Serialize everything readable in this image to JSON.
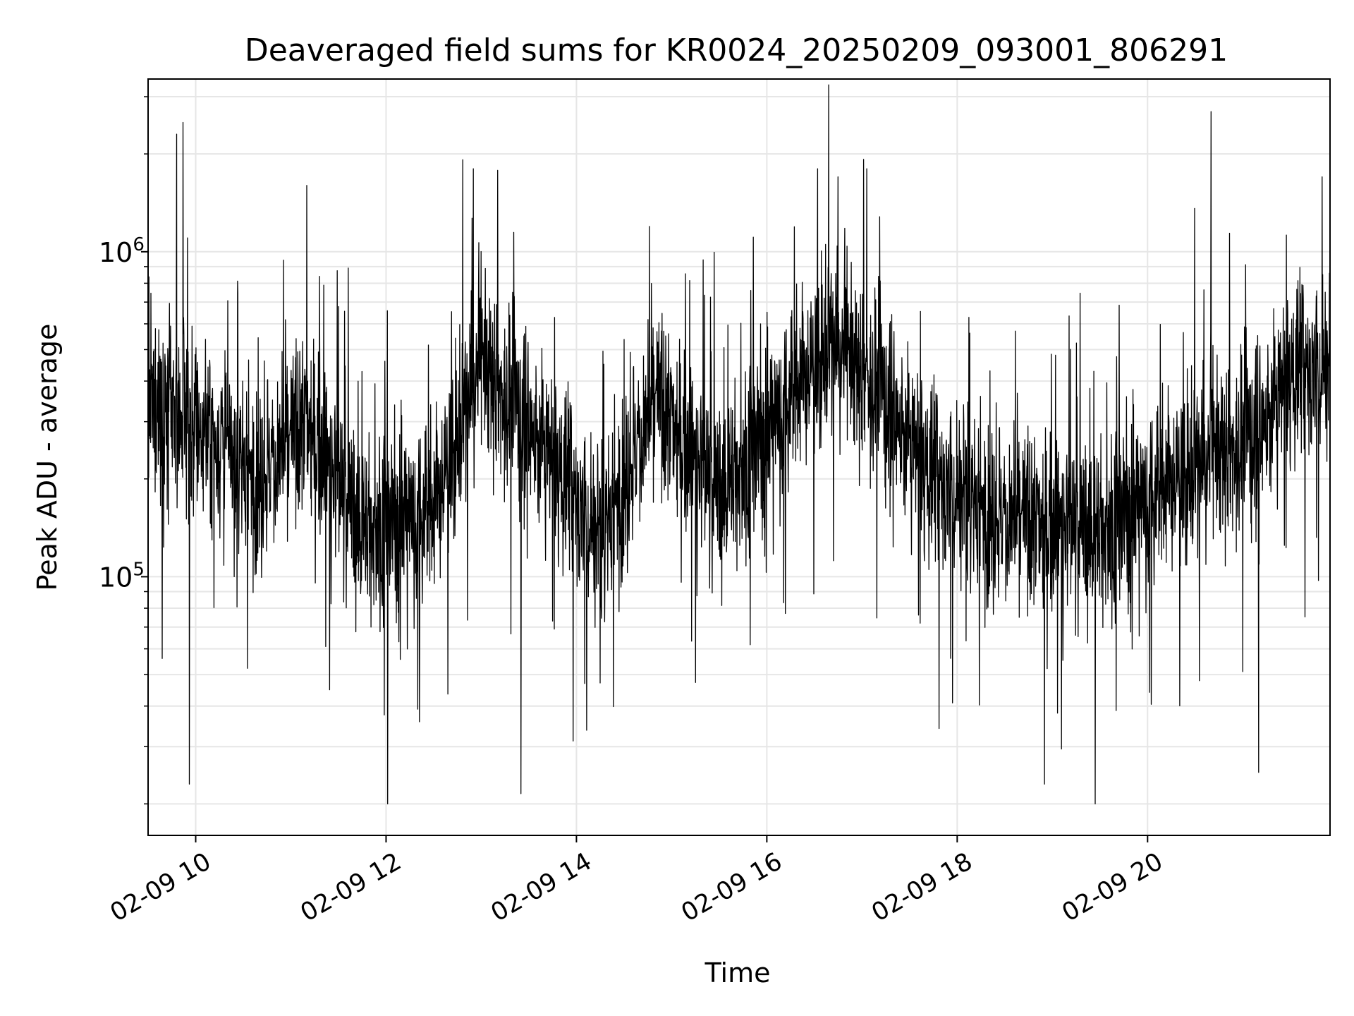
{
  "chart_data": {
    "type": "line",
    "title": "Deaveraged field sums for KR0024_20250209_093001_806291",
    "xlabel": "Time",
    "ylabel": "Peak ADU - average",
    "x_range": [
      "2025-02-09T09:30",
      "2025-02-09T21:55"
    ],
    "y_range": [
      16000,
      3400000
    ],
    "y_scale": "log",
    "grid": true,
    "line_color": "#000000",
    "x_ticks": [
      {
        "x": "2025-02-09T10:00",
        "label": "02-09 10"
      },
      {
        "x": "2025-02-09T12:00",
        "label": "02-09 12"
      },
      {
        "x": "2025-02-09T14:00",
        "label": "02-09 14"
      },
      {
        "x": "2025-02-09T16:00",
        "label": "02-09 16"
      },
      {
        "x": "2025-02-09T18:00",
        "label": "02-09 18"
      },
      {
        "x": "2025-02-09T20:00",
        "label": "02-09 20"
      }
    ],
    "y_ticks": [
      {
        "value": 100000,
        "base": "10",
        "exp": "5"
      },
      {
        "value": 1000000,
        "base": "10",
        "exp": "6"
      }
    ],
    "series": [
      {
        "trend": [
          {
            "x": "2025-02-09T09:30",
            "y": 330000
          },
          {
            "x": "2025-02-09T10:00",
            "y": 300000
          },
          {
            "x": "2025-02-09T10:40",
            "y": 200000
          },
          {
            "x": "2025-02-09T11:10",
            "y": 300000
          },
          {
            "x": "2025-02-09T11:45",
            "y": 140000
          },
          {
            "x": "2025-02-09T12:30",
            "y": 160000
          },
          {
            "x": "2025-02-09T13:00",
            "y": 450000
          },
          {
            "x": "2025-02-09T13:40",
            "y": 250000
          },
          {
            "x": "2025-02-09T14:15",
            "y": 130000
          },
          {
            "x": "2025-02-09T14:50",
            "y": 350000
          },
          {
            "x": "2025-02-09T15:30",
            "y": 180000
          },
          {
            "x": "2025-02-09T16:00",
            "y": 280000
          },
          {
            "x": "2025-02-09T16:40",
            "y": 520000
          },
          {
            "x": "2025-02-09T17:10",
            "y": 380000
          },
          {
            "x": "2025-02-09T17:45",
            "y": 200000
          },
          {
            "x": "2025-02-09T18:30",
            "y": 150000
          },
          {
            "x": "2025-02-09T19:30",
            "y": 140000
          },
          {
            "x": "2025-02-09T20:20",
            "y": 200000
          },
          {
            "x": "2025-02-09T21:10",
            "y": 280000
          },
          {
            "x": "2025-02-09T21:30",
            "y": 420000
          },
          {
            "x": "2025-02-09T21:55",
            "y": 450000
          }
        ],
        "peaks": [
          {
            "x": "2025-02-09T09:48",
            "y": 2300000
          },
          {
            "x": "2025-02-09T09:52",
            "y": 2500000
          },
          {
            "x": "2025-02-09T11:10",
            "y": 1600000
          },
          {
            "x": "2025-02-09T12:55",
            "y": 1800000
          },
          {
            "x": "2025-02-09T16:32",
            "y": 1800000
          },
          {
            "x": "2025-02-09T17:03",
            "y": 1800000
          },
          {
            "x": "2025-02-09T20:40",
            "y": 2700000
          },
          {
            "x": "2025-02-09T21:50",
            "y": 1700000
          }
        ],
        "dips": [
          {
            "x": "2025-02-09T09:56",
            "y": 23000
          },
          {
            "x": "2025-02-09T12:01",
            "y": 20000
          },
          {
            "x": "2025-02-09T13:25",
            "y": 21500
          },
          {
            "x": "2025-02-09T18:55",
            "y": 23000
          },
          {
            "x": "2025-02-09T19:27",
            "y": 20000
          },
          {
            "x": "2025-02-09T21:10",
            "y": 25000
          }
        ]
      }
    ]
  }
}
